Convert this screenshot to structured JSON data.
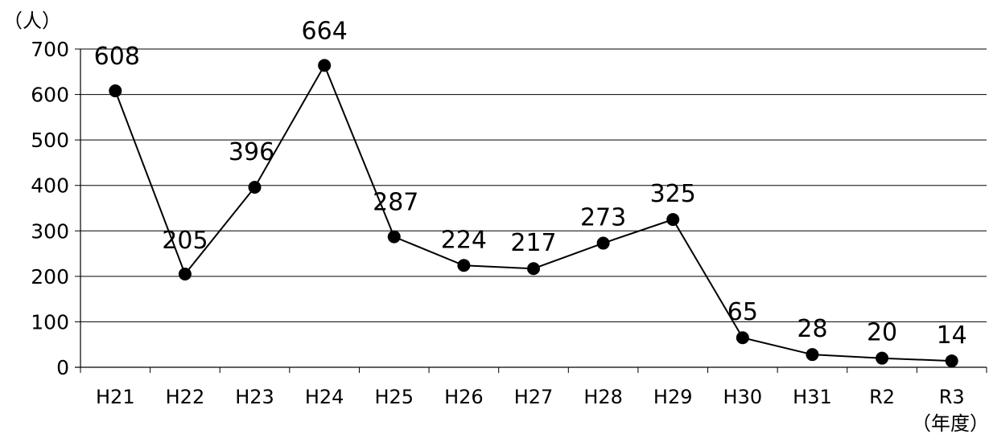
{
  "chart_data": {
    "type": "line",
    "y_unit": "（人）",
    "x_unit": "（年度）",
    "categories": [
      "H21",
      "H22",
      "H23",
      "H24",
      "H25",
      "H26",
      "H27",
      "H28",
      "H29",
      "H30",
      "H31",
      "R2",
      "R3"
    ],
    "series": [
      {
        "values": [
          608,
          205,
          396,
          664,
          287,
          224,
          217,
          273,
          325,
          65,
          28,
          20,
          14
        ]
      }
    ],
    "ylim": [
      0,
      700
    ],
    "yticks": [
      0,
      100,
      200,
      300,
      400,
      500,
      600,
      700
    ],
    "grid": true,
    "legend": "none",
    "line_color": "#000000",
    "marker_color": "#000000",
    "grid_color": "#000000"
  }
}
